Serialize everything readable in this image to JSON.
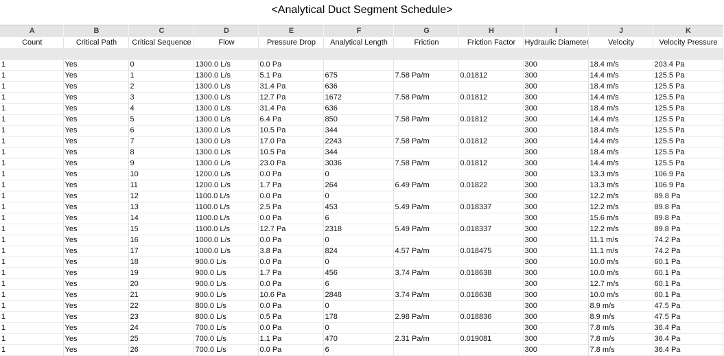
{
  "title": "<Analytical Duct Segment Schedule>",
  "column_letters": [
    "A",
    "B",
    "C",
    "D",
    "E",
    "F",
    "G",
    "H",
    "I",
    "J",
    "K"
  ],
  "columns": [
    "Count",
    "Critical Path",
    "Critical Sequence",
    "Flow",
    "Pressure Drop",
    "Analytical Length",
    "Friction",
    "Friction Factor",
    "Hydraulic Diameter",
    "Velocity",
    "Velocity Pressure"
  ],
  "rows": [
    [
      "1",
      "Yes",
      "0",
      "1300.0 L/s",
      "0.0 Pa",
      "",
      "",
      "",
      "300",
      "18.4 m/s",
      "203.4 Pa"
    ],
    [
      "1",
      "Yes",
      "1",
      "1300.0 L/s",
      "5.1 Pa",
      "675",
      "7.58 Pa/m",
      "0.01812",
      "300",
      "14.4 m/s",
      "125.5 Pa"
    ],
    [
      "1",
      "Yes",
      "2",
      "1300.0 L/s",
      "31.4 Pa",
      "636",
      "",
      "",
      "300",
      "18.4 m/s",
      "125.5 Pa"
    ],
    [
      "1",
      "Yes",
      "3",
      "1300.0 L/s",
      "12.7 Pa",
      "1672",
      "7.58 Pa/m",
      "0.01812",
      "300",
      "14.4 m/s",
      "125.5 Pa"
    ],
    [
      "1",
      "Yes",
      "4",
      "1300.0 L/s",
      "31.4 Pa",
      "636",
      "",
      "",
      "300",
      "18.4 m/s",
      "125.5 Pa"
    ],
    [
      "1",
      "Yes",
      "5",
      "1300.0 L/s",
      "6.4 Pa",
      "850",
      "7.58 Pa/m",
      "0.01812",
      "300",
      "14.4 m/s",
      "125.5 Pa"
    ],
    [
      "1",
      "Yes",
      "6",
      "1300.0 L/s",
      "10.5 Pa",
      "344",
      "",
      "",
      "300",
      "18.4 m/s",
      "125.5 Pa"
    ],
    [
      "1",
      "Yes",
      "7",
      "1300.0 L/s",
      "17.0 Pa",
      "2243",
      "7.58 Pa/m",
      "0.01812",
      "300",
      "14.4 m/s",
      "125.5 Pa"
    ],
    [
      "1",
      "Yes",
      "8",
      "1300.0 L/s",
      "10.5 Pa",
      "344",
      "",
      "",
      "300",
      "18.4 m/s",
      "125.5 Pa"
    ],
    [
      "1",
      "Yes",
      "9",
      "1300.0 L/s",
      "23.0 Pa",
      "3036",
      "7.58 Pa/m",
      "0.01812",
      "300",
      "14.4 m/s",
      "125.5 Pa"
    ],
    [
      "1",
      "Yes",
      "10",
      "1200.0 L/s",
      "0.0 Pa",
      "0",
      "",
      "",
      "300",
      "13.3 m/s",
      "106.9 Pa"
    ],
    [
      "1",
      "Yes",
      "11",
      "1200.0 L/s",
      "1.7 Pa",
      "264",
      "6.49 Pa/m",
      "0.01822",
      "300",
      "13.3 m/s",
      "106.9 Pa"
    ],
    [
      "1",
      "Yes",
      "12",
      "1100.0 L/s",
      "0.0 Pa",
      "0",
      "",
      "",
      "300",
      "12.2 m/s",
      "89.8 Pa"
    ],
    [
      "1",
      "Yes",
      "13",
      "1100.0 L/s",
      "2.5 Pa",
      "453",
      "5.49 Pa/m",
      "0.018337",
      "300",
      "12.2 m/s",
      "89.8 Pa"
    ],
    [
      "1",
      "Yes",
      "14",
      "1100.0 L/s",
      "0.0 Pa",
      "6",
      "",
      "",
      "300",
      "15.6 m/s",
      "89.8 Pa"
    ],
    [
      "1",
      "Yes",
      "15",
      "1100.0 L/s",
      "12.7 Pa",
      "2318",
      "5.49 Pa/m",
      "0.018337",
      "300",
      "12.2 m/s",
      "89.8 Pa"
    ],
    [
      "1",
      "Yes",
      "16",
      "1000.0 L/s",
      "0.0 Pa",
      "0",
      "",
      "",
      "300",
      "11.1 m/s",
      "74.2 Pa"
    ],
    [
      "1",
      "Yes",
      "17",
      "1000.0 L/s",
      "3.8 Pa",
      "824",
      "4.57 Pa/m",
      "0.018475",
      "300",
      "11.1 m/s",
      "74.2 Pa"
    ],
    [
      "1",
      "Yes",
      "18",
      "900.0 L/s",
      "0.0 Pa",
      "0",
      "",
      "",
      "300",
      "10.0 m/s",
      "60.1 Pa"
    ],
    [
      "1",
      "Yes",
      "19",
      "900.0 L/s",
      "1.7 Pa",
      "456",
      "3.74 Pa/m",
      "0.018638",
      "300",
      "10.0 m/s",
      "60.1 Pa"
    ],
    [
      "1",
      "Yes",
      "20",
      "900.0 L/s",
      "0.0 Pa",
      "6",
      "",
      "",
      "300",
      "12.7 m/s",
      "60.1 Pa"
    ],
    [
      "1",
      "Yes",
      "21",
      "900.0 L/s",
      "10.6 Pa",
      "2848",
      "3.74 Pa/m",
      "0.018638",
      "300",
      "10.0 m/s",
      "60.1 Pa"
    ],
    [
      "1",
      "Yes",
      "22",
      "800.0 L/s",
      "0.0 Pa",
      "0",
      "",
      "",
      "300",
      "8.9 m/s",
      "47.5 Pa"
    ],
    [
      "1",
      "Yes",
      "23",
      "800.0 L/s",
      "0.5 Pa",
      "178",
      "2.98 Pa/m",
      "0.018836",
      "300",
      "8.9 m/s",
      "47.5 Pa"
    ],
    [
      "1",
      "Yes",
      "24",
      "700.0 L/s",
      "0.0 Pa",
      "0",
      "",
      "",
      "300",
      "7.8 m/s",
      "36.4 Pa"
    ],
    [
      "1",
      "Yes",
      "25",
      "700.0 L/s",
      "1.1 Pa",
      "470",
      "2.31 Pa/m",
      "0.019081",
      "300",
      "7.8 m/s",
      "36.4 Pa"
    ],
    [
      "1",
      "Yes",
      "26",
      "700.0 L/s",
      "0.0 Pa",
      "6",
      "",
      "",
      "300",
      "7.8 m/s",
      "36.4 Pa"
    ]
  ]
}
